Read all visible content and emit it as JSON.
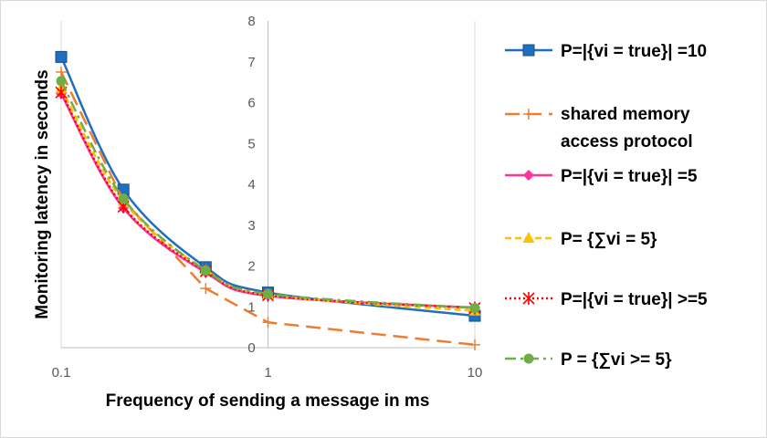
{
  "chart_data": {
    "type": "line",
    "xscale": "log",
    "x": [
      0.1,
      0.2,
      0.5,
      1,
      10
    ],
    "xticks": [
      "0.1",
      "1",
      "10"
    ],
    "xlim": [
      0.1,
      10
    ],
    "ylim": [
      0,
      8
    ],
    "yticks": [
      "0",
      "1",
      "2",
      "3",
      "4",
      "5",
      "6",
      "7",
      "8"
    ],
    "xlabel": "Frequency of sending a message in ms",
    "ylabel": "Monitoring latency in seconds",
    "grid": "vertical major only",
    "legend_position": "right",
    "series": [
      {
        "name": "P=|{vi = true}| =10",
        "values": [
          7.12,
          3.87,
          1.97,
          1.35,
          0.78
        ],
        "color": "#1f6fbf",
        "marker": "square",
        "dash": "solid",
        "smooth": true
      },
      {
        "name": "shared memory access protocol",
        "values": [
          6.75,
          3.6,
          1.45,
          0.62,
          0.07
        ],
        "color": "#ed7d31",
        "marker": "plus",
        "dash": "long-dash",
        "smooth": false
      },
      {
        "name": "P=|{vi = true}| =5",
        "values": [
          6.22,
          3.42,
          1.84,
          1.27,
          0.98
        ],
        "color": "#ff3399",
        "marker": "diamond",
        "dash": "solid",
        "smooth": true
      },
      {
        "name": "P= {∑vi = 5}",
        "values": [
          6.35,
          3.58,
          1.9,
          1.3,
          0.9
        ],
        "color": "#ffc000",
        "marker": "triangle",
        "dash": "dashed",
        "smooth": true
      },
      {
        "name": "P=|{vi = true}| >=5",
        "values": [
          6.25,
          3.45,
          1.87,
          1.28,
          0.97
        ],
        "color": "#ff0000",
        "marker": "asterisk",
        "dash": "dotted",
        "smooth": true
      },
      {
        "name": "P = {∑vi >= 5}",
        "values": [
          6.53,
          3.65,
          1.89,
          1.32,
          0.97
        ],
        "color": "#70ad47",
        "marker": "circle",
        "dash": "dash-dot",
        "smooth": true
      }
    ]
  }
}
